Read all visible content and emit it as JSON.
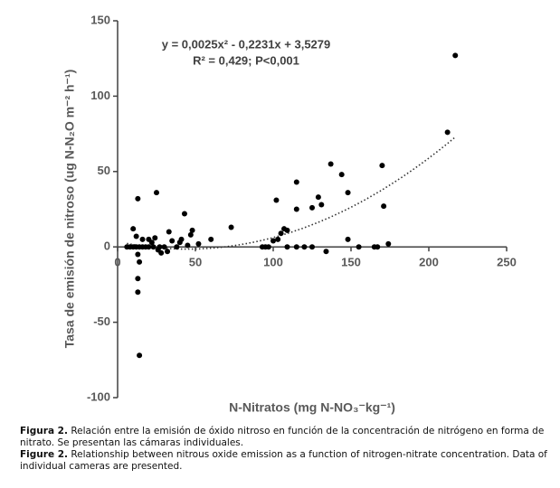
{
  "chart_data": {
    "type": "scatter",
    "yaxis_title": "Tasa de emisión de nitroso (ug N-N₂O m⁻² h⁻¹)",
    "xaxis_title": "N-Nitratos (mg N-NO₃⁻kg⁻¹)",
    "equation": "y = 0,0025x² - 0,2231x + 3,5279",
    "r2_text": "R² = 0,429; P<0,001",
    "trendline": {
      "a": 0.0025,
      "b": -0.2231,
      "c": 3.5279
    },
    "color": "#000000",
    "x": [
      217,
      212,
      170,
      171,
      174,
      137,
      144,
      148,
      148,
      155,
      115,
      125,
      129,
      131,
      134,
      102,
      107,
      109,
      105,
      103,
      100,
      115,
      115,
      109,
      120,
      125,
      93,
      95,
      97,
      165,
      167,
      73,
      60,
      52,
      48,
      47,
      43,
      40,
      25,
      13,
      10,
      13,
      13,
      14,
      14,
      13,
      12,
      16,
      20,
      22,
      24,
      26,
      30,
      33,
      35,
      38,
      32,
      45,
      41,
      6,
      8,
      10,
      12,
      14,
      16,
      18,
      20,
      23,
      27,
      28
    ],
    "values": [
      127,
      76,
      54,
      27,
      2,
      55,
      48,
      36,
      5,
      0,
      43,
      26,
      33,
      28,
      -3,
      31,
      12,
      11,
      9,
      5,
      4,
      25,
      0,
      0,
      0,
      0,
      0,
      0,
      0,
      0,
      0,
      13,
      5,
      2,
      11,
      8,
      22,
      3,
      36,
      32,
      12,
      -21,
      -30,
      -72,
      -10,
      -5,
      7,
      5,
      5,
      3,
      6,
      -2,
      0,
      10,
      4,
      0,
      -3,
      1,
      5,
      0,
      0,
      0,
      0,
      0,
      0,
      0,
      0,
      0,
      0,
      -4
    ],
    "xlim": [
      0,
      250
    ],
    "xticks": [
      0,
      50,
      100,
      150,
      200,
      250
    ],
    "ylim": [
      -100,
      150
    ],
    "yticks": [
      -100,
      -50,
      0,
      50,
      100,
      150
    ]
  },
  "caption": [
    {
      "label": "Figura 2.",
      "text": "Relación entre la emisión de óxido nitroso en función de la concentración de nitrógeno en forma de nitrato. Se presentan las cámaras individuales."
    },
    {
      "label": "Figure 2.",
      "text": "Relationship between nitrous oxide emission as a function of nitrogen-nitrate concentration. Data of individual cameras are presented."
    }
  ]
}
